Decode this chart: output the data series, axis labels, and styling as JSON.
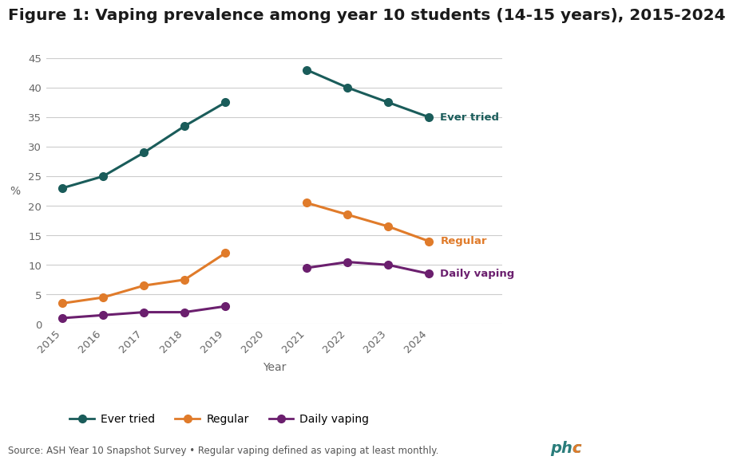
{
  "title": "Figure 1: Vaping prevalence among year 10 students (14-15 years), 2015-2024",
  "years": [
    2015,
    2016,
    2017,
    2018,
    2019,
    2020,
    2021,
    2022,
    2023,
    2024
  ],
  "ever_tried": [
    23,
    25,
    29,
    33.5,
    37.5,
    null,
    43,
    40,
    37.5,
    35
  ],
  "regular": [
    3.5,
    4.5,
    6.5,
    7.5,
    12,
    null,
    20.5,
    18.5,
    16.5,
    14
  ],
  "daily": [
    1,
    1.5,
    2,
    2,
    3,
    null,
    9.5,
    10.5,
    10,
    8.5
  ],
  "ever_tried_color": "#1a5c5a",
  "regular_color": "#e07b2a",
  "daily_color": "#6b1f6e",
  "xlabel": "Year",
  "ylabel": "%",
  "ylim": [
    0,
    45
  ],
  "yticks": [
    0,
    5,
    10,
    15,
    20,
    25,
    30,
    35,
    40,
    45
  ],
  "source_text": "Source: ASH Year 10 Snapshot Survey • Regular vaping defined as vaping at least monthly.",
  "legend_labels": [
    "Ever tried",
    "Regular",
    "Daily vaping"
  ],
  "title_fontsize": 14.5,
  "axis_fontsize": 10,
  "tick_fontsize": 9.5,
  "background_color": "#ffffff",
  "grid_color": "#cccccc",
  "phcc_teal": "#2a7d7b",
  "phcc_orange": "#e07b2a"
}
